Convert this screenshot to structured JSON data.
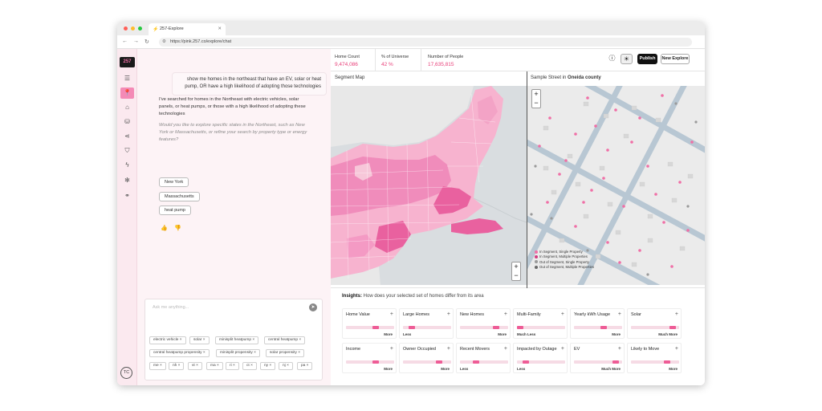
{
  "browser": {
    "tab_title": "257-Explore",
    "url": "https://pink.257.co/explore/chat"
  },
  "rail": {
    "logo": "257",
    "items": [
      "filter-icon",
      "pin-icon",
      "home-icon",
      "database-icon",
      "share-icon",
      "shield-icon",
      "bolt-icon",
      "network-icon",
      "link-icon"
    ],
    "avatar": "TC"
  },
  "chat": {
    "user_message": "show me homes in the northeast that have an EV, solar or heat pump, OR have a high likelihood of adopting those technologies",
    "bot_reply": "I've searched for homes in the Northeast with electric vehicles, solar panels, or heat pumps, or those with a high likelihood of adopting these technologies",
    "bot_question": "Would you like to explore specific states in the Northeast, such as New York or Massachusetts, or refine your search by property type or energy features?",
    "suggestions": [
      "New York",
      "Massachusetts",
      "heat pump"
    ],
    "input_placeholder": "Ask me anything...",
    "tags": [
      "electric vehicle",
      "solar",
      "minisplit heatpump",
      "central heatpump",
      "central heatpump propensity",
      "minisplit propensity",
      "solar propensity",
      "me",
      "nh",
      "vt",
      "ma",
      "ri",
      "ct",
      "ny",
      "nj",
      "pa"
    ]
  },
  "stats": {
    "home_count_label": "Home Count",
    "home_count_value": "9,474,086",
    "universe_label": "% of Universe",
    "universe_value": "42 %",
    "people_label": "Number of People",
    "people_value": "17,635,815",
    "publish_label": "Publish",
    "new_explore_label": "New Explore"
  },
  "segment_map": {
    "title": "Segment Map"
  },
  "street_map": {
    "title_prefix": "Sample Street in",
    "county": "Oneida county",
    "legend": [
      {
        "label": "In Segment, Single Property",
        "color": "#f06fa6"
      },
      {
        "label": "In Segment, Multiple Properties",
        "color": "#d23a80"
      },
      {
        "label": "Out of Segment, Single Property",
        "color": "#9a9a9a"
      },
      {
        "label": "Out of Segment, Multiple Properties",
        "color": "#6a6a6a"
      }
    ]
  },
  "insights": {
    "title": "Insights:",
    "subtitle": "How does your selected set of homes differ from its area",
    "cards": [
      {
        "label": "Home Value",
        "direction": "More",
        "level": 0.63
      },
      {
        "label": "Large Homes",
        "direction": "Less",
        "level": 0.13
      },
      {
        "label": "New Homes",
        "direction": "More",
        "level": 0.78
      },
      {
        "label": "Multi-Family",
        "direction": "Much Less",
        "level": 0.0
      },
      {
        "label": "Yearly kWh Usage",
        "direction": "More",
        "level": 0.63
      },
      {
        "label": "Solar",
        "direction": "Much More",
        "level": 0.92
      },
      {
        "label": "Income",
        "direction": "More",
        "level": 0.63
      },
      {
        "label": "Owner Occupied",
        "direction": "More",
        "level": 0.78
      },
      {
        "label": "Recent Movers",
        "direction": "Less",
        "level": 0.3
      },
      {
        "label": "Impacted by Outage",
        "direction": "Less",
        "level": 0.13
      },
      {
        "label": "EV",
        "direction": "Much More",
        "level": 0.92
      },
      {
        "label": "Likely to Move",
        "direction": "More",
        "level": 0.78
      }
    ]
  },
  "colors": {
    "accent": "#e8407a",
    "pink_light": "#f48ab6"
  }
}
